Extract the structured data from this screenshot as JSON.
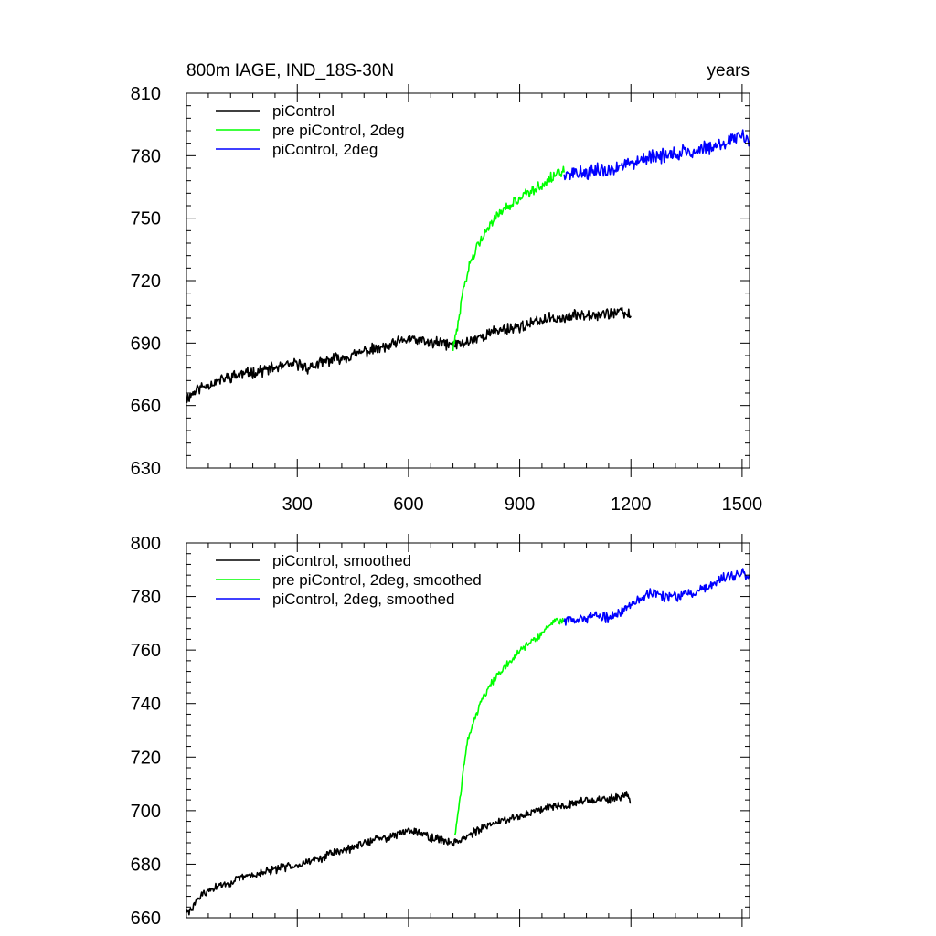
{
  "title_left": "800m IAGE, IND_18S-30N",
  "title_right": "years",
  "chart_data": [
    {
      "type": "line",
      "panel": "top",
      "title": "800m IAGE, IND_18S-30N",
      "units_label": "years",
      "xlabel": "",
      "ylabel": "",
      "xlim": [
        1,
        1520
      ],
      "ylim": [
        630,
        810
      ],
      "xticks": [
        300,
        600,
        900,
        1200,
        1500
      ],
      "xtick_labels": [
        "300",
        "600",
        "900",
        "1200",
        "1500"
      ],
      "yticks": [
        630,
        660,
        690,
        720,
        750,
        780,
        810
      ],
      "ytick_labels": [
        "630",
        "660",
        "690",
        "720",
        "750",
        "780",
        "810"
      ],
      "grid": false,
      "legend_position": "top-left",
      "series": [
        {
          "name": "piControl",
          "color": "#000000",
          "x": [
            1,
            30,
            60,
            90,
            120,
            150,
            180,
            210,
            240,
            270,
            300,
            330,
            360,
            390,
            420,
            450,
            480,
            510,
            540,
            570,
            600,
            630,
            660,
            690,
            720,
            750,
            780,
            810,
            840,
            870,
            900,
            930,
            960,
            990,
            1020,
            1050,
            1080,
            1110,
            1140,
            1170,
            1200
          ],
          "y": [
            663,
            668,
            670,
            672,
            674,
            675,
            676,
            677,
            678,
            679,
            680,
            678,
            680,
            682,
            683,
            684,
            686,
            687,
            688,
            690,
            692,
            691,
            690,
            690,
            689,
            690,
            692,
            694,
            696,
            697,
            698,
            699,
            701,
            702,
            702,
            703,
            704,
            704,
            704,
            705,
            703
          ],
          "noise_amplitude": 2.2
        },
        {
          "name": "pre piControl, 2deg",
          "color": "#00ff00",
          "x": [
            720,
            730,
            745,
            760,
            780,
            800,
            830,
            860,
            890,
            920,
            950,
            980,
            1000,
            1020
          ],
          "y": [
            688,
            695,
            712,
            725,
            735,
            742,
            749,
            754,
            758,
            762,
            765,
            769,
            771,
            772
          ],
          "noise_amplitude": 2.0
        },
        {
          "name": "piControl, 2deg",
          "color": "#0000ff",
          "x": [
            1020,
            1050,
            1080,
            1110,
            1140,
            1170,
            1200,
            1230,
            1260,
            1290,
            1320,
            1350,
            1380,
            1410,
            1440,
            1470,
            1500,
            1520
          ],
          "y": [
            771,
            771,
            772,
            773,
            773,
            775,
            777,
            779,
            780,
            780,
            781,
            782,
            783,
            784,
            786,
            788,
            789,
            787
          ],
          "noise_amplitude": 2.8
        }
      ]
    },
    {
      "type": "line",
      "panel": "bottom",
      "title": "",
      "xlabel": "",
      "ylabel": "",
      "xlim": [
        1,
        1520
      ],
      "ylim": [
        660,
        800
      ],
      "xticks": [
        300,
        600,
        900,
        1200,
        1500
      ],
      "yticks": [
        660,
        680,
        700,
        720,
        740,
        760,
        780,
        800
      ],
      "ytick_labels": [
        "660",
        "680",
        "700",
        "720",
        "740",
        "760",
        "780",
        "800"
      ],
      "grid": false,
      "legend_position": "top-left",
      "series": [
        {
          "name": "piControl, smoothed",
          "color": "#000000",
          "x": [
            1,
            10,
            30,
            60,
            90,
            120,
            150,
            180,
            210,
            240,
            270,
            300,
            330,
            360,
            390,
            420,
            450,
            480,
            510,
            540,
            570,
            600,
            630,
            660,
            690,
            720,
            750,
            780,
            810,
            840,
            870,
            900,
            930,
            960,
            990,
            1020,
            1050,
            1080,
            1110,
            1140,
            1170,
            1190,
            1200
          ],
          "y": [
            662,
            662,
            667,
            670,
            672,
            673,
            675,
            676,
            677,
            678,
            679,
            680,
            681,
            682,
            684,
            685,
            686,
            688,
            689,
            690,
            691,
            693,
            692,
            690,
            689,
            688,
            690,
            692,
            694,
            696,
            697,
            698,
            699,
            701,
            702,
            702,
            703,
            704,
            704,
            704,
            705,
            706,
            703
          ],
          "noise_amplitude": 1.2
        },
        {
          "name": "pre piControl, 2deg, smoothed",
          "color": "#00ff00",
          "x": [
            725,
            735,
            745,
            760,
            780,
            800,
            830,
            860,
            890,
            920,
            950,
            980,
            1000,
            1020
          ],
          "y": [
            691,
            700,
            712,
            727,
            735,
            742,
            749,
            754,
            758,
            762,
            765,
            769,
            771,
            771
          ],
          "noise_amplitude": 1.0
        },
        {
          "name": "piControl, 2deg, smoothed",
          "color": "#0000ff",
          "x": [
            1020,
            1050,
            1080,
            1110,
            1140,
            1170,
            1200,
            1230,
            1260,
            1290,
            1320,
            1350,
            1380,
            1410,
            1440,
            1470,
            1500,
            1520
          ],
          "y": [
            771,
            771,
            772,
            773,
            772,
            774,
            777,
            780,
            782,
            780,
            780,
            781,
            782,
            784,
            786,
            788,
            789,
            787
          ],
          "noise_amplitude": 1.5
        }
      ]
    }
  ]
}
